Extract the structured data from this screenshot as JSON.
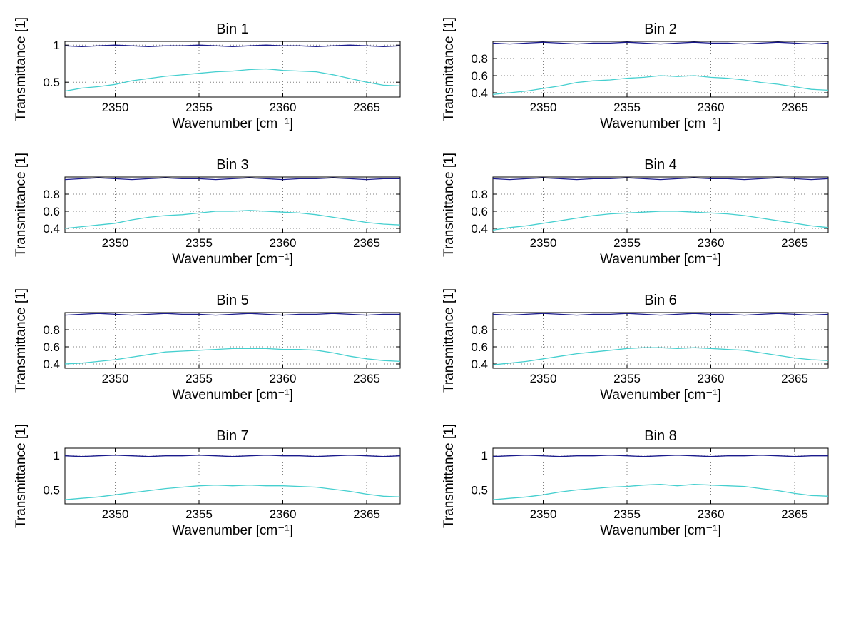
{
  "figure": {
    "background": "#ffffff"
  },
  "x_values": [
    2347,
    2348,
    2349,
    2350,
    2351,
    2352,
    2353,
    2354,
    2355,
    2356,
    2357,
    2358,
    2359,
    2360,
    2361,
    2362,
    2363,
    2364,
    2365,
    2366,
    2367
  ],
  "colors": {
    "reference_line": "#1a1a8c",
    "transmittance_line": "#45cfcf",
    "grid": "#808080"
  },
  "chart_data": [
    {
      "type": "line",
      "title": "Bin 1",
      "xlabel": "Wavenumber [cm⁻¹]",
      "ylabel": "Transmittance [1]",
      "xlim": [
        2347,
        2367
      ],
      "ylim": [
        0.3,
        1.05
      ],
      "xticks": [
        2350,
        2355,
        2360,
        2365
      ],
      "yticks": [
        0.5,
        1
      ],
      "grid": true,
      "legend": false,
      "series": [
        {
          "color": "#1a1a8c",
          "values": [
            0.99,
            0.98,
            0.99,
            1.0,
            0.99,
            0.98,
            0.99,
            0.99,
            1.0,
            0.99,
            0.98,
            0.99,
            1.0,
            0.99,
            0.99,
            0.98,
            0.99,
            1.0,
            0.99,
            0.98,
            0.99
          ]
        },
        {
          "color": "#45cfcf",
          "values": [
            0.38,
            0.42,
            0.44,
            0.47,
            0.52,
            0.55,
            0.58,
            0.6,
            0.62,
            0.64,
            0.65,
            0.67,
            0.68,
            0.66,
            0.65,
            0.64,
            0.6,
            0.55,
            0.5,
            0.46,
            0.45
          ]
        }
      ]
    },
    {
      "type": "line",
      "title": "Bin 2",
      "xlabel": "Wavenumber [cm⁻¹]",
      "ylabel": "Transmittance [1]",
      "xlim": [
        2347,
        2367
      ],
      "ylim": [
        0.35,
        1.0
      ],
      "xticks": [
        2350,
        2355,
        2360,
        2365
      ],
      "yticks": [
        0.4,
        0.6,
        0.8
      ],
      "grid": true,
      "legend": false,
      "series": [
        {
          "color": "#1a1a8c",
          "values": [
            0.98,
            0.97,
            0.98,
            0.99,
            0.98,
            0.97,
            0.98,
            0.98,
            0.99,
            0.98,
            0.97,
            0.98,
            0.99,
            0.98,
            0.98,
            0.97,
            0.98,
            0.99,
            0.98,
            0.97,
            0.98
          ]
        },
        {
          "color": "#45cfcf",
          "values": [
            0.38,
            0.4,
            0.42,
            0.45,
            0.48,
            0.52,
            0.54,
            0.55,
            0.57,
            0.58,
            0.6,
            0.59,
            0.6,
            0.58,
            0.57,
            0.55,
            0.52,
            0.5,
            0.47,
            0.44,
            0.43
          ]
        }
      ]
    },
    {
      "type": "line",
      "title": "Bin 3",
      "xlabel": "Wavenumber [cm⁻¹]",
      "ylabel": "Transmittance [1]",
      "xlim": [
        2347,
        2367
      ],
      "ylim": [
        0.35,
        1.0
      ],
      "xticks": [
        2350,
        2355,
        2360,
        2365
      ],
      "yticks": [
        0.4,
        0.6,
        0.8
      ],
      "grid": true,
      "legend": false,
      "series": [
        {
          "color": "#1a1a8c",
          "values": [
            0.97,
            0.98,
            0.99,
            0.98,
            0.97,
            0.98,
            0.99,
            0.98,
            0.98,
            0.97,
            0.98,
            0.99,
            0.98,
            0.97,
            0.98,
            0.98,
            0.99,
            0.98,
            0.97,
            0.98,
            0.98
          ]
        },
        {
          "color": "#45cfcf",
          "values": [
            0.4,
            0.42,
            0.44,
            0.46,
            0.5,
            0.53,
            0.55,
            0.56,
            0.58,
            0.6,
            0.6,
            0.61,
            0.6,
            0.59,
            0.58,
            0.56,
            0.53,
            0.5,
            0.47,
            0.45,
            0.44
          ]
        }
      ]
    },
    {
      "type": "line",
      "title": "Bin 4",
      "xlabel": "Wavenumber [cm⁻¹]",
      "ylabel": "Transmittance [1]",
      "xlim": [
        2347,
        2367
      ],
      "ylim": [
        0.35,
        1.0
      ],
      "xticks": [
        2350,
        2355,
        2360,
        2365
      ],
      "yticks": [
        0.4,
        0.6,
        0.8
      ],
      "grid": true,
      "legend": false,
      "series": [
        {
          "color": "#1a1a8c",
          "values": [
            0.98,
            0.97,
            0.98,
            0.99,
            0.98,
            0.97,
            0.98,
            0.98,
            0.99,
            0.98,
            0.97,
            0.98,
            0.99,
            0.98,
            0.98,
            0.97,
            0.98,
            0.99,
            0.98,
            0.97,
            0.98
          ]
        },
        {
          "color": "#45cfcf",
          "values": [
            0.38,
            0.41,
            0.43,
            0.46,
            0.49,
            0.52,
            0.55,
            0.57,
            0.58,
            0.59,
            0.6,
            0.6,
            0.59,
            0.58,
            0.57,
            0.55,
            0.52,
            0.49,
            0.46,
            0.43,
            0.41
          ]
        }
      ]
    },
    {
      "type": "line",
      "title": "Bin 5",
      "xlabel": "Wavenumber [cm⁻¹]",
      "ylabel": "Transmittance [1]",
      "xlim": [
        2347,
        2367
      ],
      "ylim": [
        0.35,
        1.0
      ],
      "xticks": [
        2350,
        2355,
        2360,
        2365
      ],
      "yticks": [
        0.4,
        0.6,
        0.8
      ],
      "grid": true,
      "legend": false,
      "series": [
        {
          "color": "#1a1a8c",
          "values": [
            0.97,
            0.98,
            0.99,
            0.98,
            0.97,
            0.98,
            0.99,
            0.98,
            0.98,
            0.97,
            0.98,
            0.99,
            0.98,
            0.97,
            0.98,
            0.98,
            0.99,
            0.98,
            0.97,
            0.98,
            0.98
          ]
        },
        {
          "color": "#45cfcf",
          "values": [
            0.4,
            0.41,
            0.43,
            0.45,
            0.48,
            0.51,
            0.54,
            0.55,
            0.56,
            0.57,
            0.58,
            0.58,
            0.58,
            0.57,
            0.57,
            0.56,
            0.53,
            0.49,
            0.46,
            0.44,
            0.43
          ]
        }
      ]
    },
    {
      "type": "line",
      "title": "Bin 6",
      "xlabel": "Wavenumber [cm⁻¹]",
      "ylabel": "Transmittance [1]",
      "xlim": [
        2347,
        2367
      ],
      "ylim": [
        0.35,
        1.0
      ],
      "xticks": [
        2350,
        2355,
        2360,
        2365
      ],
      "yticks": [
        0.4,
        0.6,
        0.8
      ],
      "grid": true,
      "legend": false,
      "series": [
        {
          "color": "#1a1a8c",
          "values": [
            0.98,
            0.97,
            0.98,
            0.99,
            0.98,
            0.97,
            0.98,
            0.98,
            0.99,
            0.98,
            0.97,
            0.98,
            0.99,
            0.98,
            0.98,
            0.97,
            0.98,
            0.99,
            0.98,
            0.97,
            0.98
          ]
        },
        {
          "color": "#45cfcf",
          "values": [
            0.39,
            0.41,
            0.43,
            0.46,
            0.49,
            0.52,
            0.54,
            0.56,
            0.58,
            0.59,
            0.59,
            0.58,
            0.59,
            0.58,
            0.57,
            0.56,
            0.53,
            0.5,
            0.47,
            0.45,
            0.44
          ]
        }
      ]
    },
    {
      "type": "line",
      "title": "Bin 7",
      "xlabel": "Wavenumber [cm⁻¹]",
      "ylabel": "Transmittance [1]",
      "xlim": [
        2347,
        2367
      ],
      "ylim": [
        0.3,
        1.1
      ],
      "xticks": [
        2350,
        2355,
        2360,
        2365
      ],
      "yticks": [
        0.5,
        1
      ],
      "grid": true,
      "legend": false,
      "series": [
        {
          "color": "#1a1a8c",
          "values": [
            0.99,
            0.98,
            0.99,
            1.0,
            0.99,
            0.98,
            0.99,
            0.99,
            1.0,
            0.99,
            0.98,
            0.99,
            1.0,
            0.99,
            0.99,
            0.98,
            0.99,
            1.0,
            0.99,
            0.98,
            0.99
          ]
        },
        {
          "color": "#45cfcf",
          "values": [
            0.36,
            0.38,
            0.4,
            0.43,
            0.46,
            0.49,
            0.52,
            0.54,
            0.56,
            0.57,
            0.56,
            0.57,
            0.56,
            0.56,
            0.55,
            0.54,
            0.51,
            0.48,
            0.44,
            0.41,
            0.4
          ]
        }
      ]
    },
    {
      "type": "line",
      "title": "Bin 8",
      "xlabel": "Wavenumber [cm⁻¹]",
      "ylabel": "Transmittance [1]",
      "xlim": [
        2347,
        2367
      ],
      "ylim": [
        0.3,
        1.1
      ],
      "xticks": [
        2350,
        2355,
        2360,
        2365
      ],
      "yticks": [
        0.5,
        1
      ],
      "grid": true,
      "legend": false,
      "series": [
        {
          "color": "#1a1a8c",
          "values": [
            0.98,
            0.99,
            1.0,
            0.99,
            0.98,
            0.99,
            0.99,
            1.0,
            0.99,
            0.98,
            0.99,
            1.0,
            0.99,
            0.98,
            0.99,
            0.99,
            1.0,
            0.99,
            0.98,
            0.99,
            0.99
          ]
        },
        {
          "color": "#45cfcf",
          "values": [
            0.36,
            0.38,
            0.4,
            0.43,
            0.47,
            0.5,
            0.52,
            0.54,
            0.55,
            0.57,
            0.58,
            0.56,
            0.58,
            0.57,
            0.56,
            0.55,
            0.52,
            0.49,
            0.45,
            0.42,
            0.41
          ]
        }
      ]
    }
  ]
}
